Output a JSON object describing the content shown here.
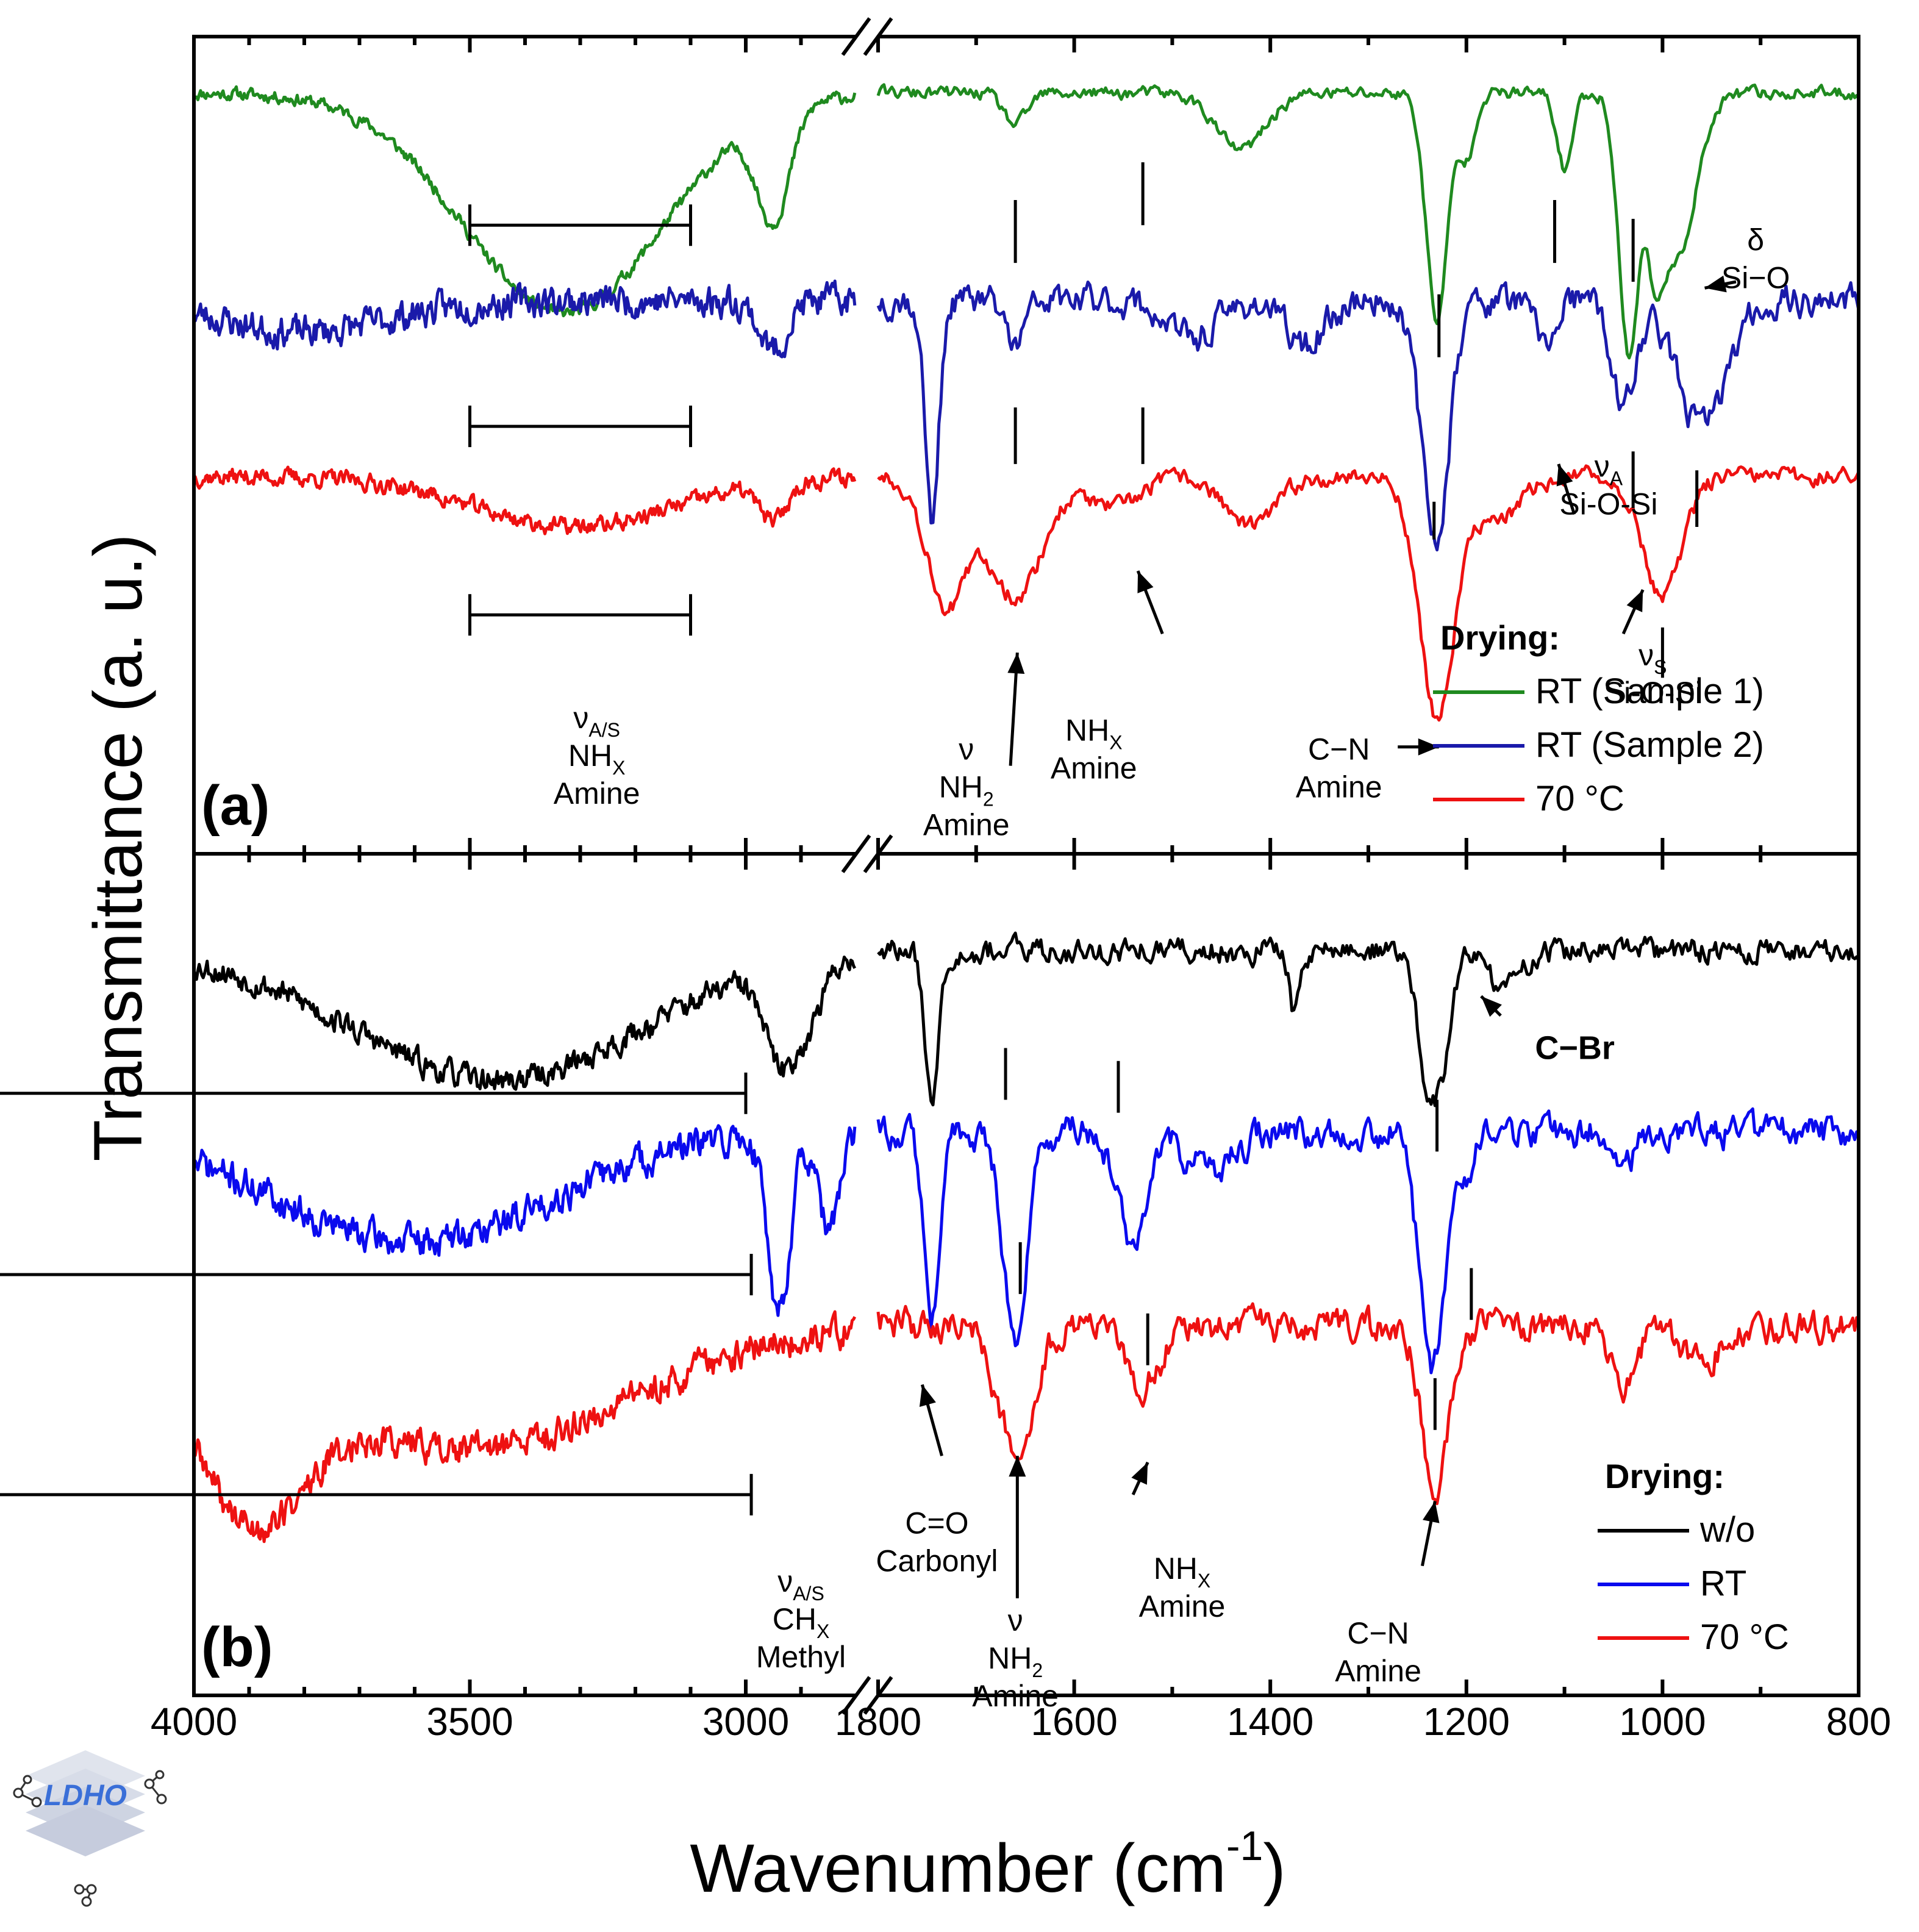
{
  "chart_data": {
    "type": "line",
    "ylabel": "Transmittance (a. u.)",
    "xlabel": "Wavenumber (cm",
    "xlabel_sup": "-1",
    "ylabel_units": "a. u.",
    "x_axis": {
      "reversed": true,
      "break": {
        "from": 2800,
        "to": 1800
      },
      "segment_left": [
        4000,
        2800
      ],
      "segment_right": [
        1800,
        800
      ],
      "tick_labels": [
        "4000",
        "3500",
        "3000",
        "1800",
        "1600",
        "1400",
        "1200",
        "1000",
        "800"
      ],
      "tick_values": [
        4000,
        3500,
        3000,
        1800,
        1600,
        1400,
        1200,
        1000,
        800
      ]
    },
    "panels": [
      {
        "label": "(a)",
        "legend_title": "Drying:",
        "series": [
          {
            "name": "RT (Sample 1)",
            "color": "#1f8a1f",
            "baseline": 0.91,
            "noise": 0.018,
            "seed": 11,
            "bands": [
              [
                3330,
                180,
                0.35
              ],
              [
                2950,
                30,
                0.17
              ],
              [
                1660,
                12,
                0.05
              ],
              [
                1430,
                25,
                0.09
              ],
              [
                1230,
                11,
                0.36
              ],
              [
                1200,
                8,
                0.1
              ],
              [
                1100,
                8,
                0.12
              ],
              [
                1035,
                10,
                0.38
              ],
              [
                990,
                22,
                0.28
              ],
              [
                1008,
                6,
                0.12
              ]
            ]
          },
          {
            "name": "RT (Sample 2)",
            "color": "#1a1aaa",
            "baseline": 0.58,
            "noise": 0.045,
            "seed": 23,
            "bands": [
              [
                3800,
                150,
                0.05
              ],
              [
                2950,
                25,
                0.08
              ],
              [
                1745,
                7,
                0.35
              ],
              [
                1660,
                10,
                0.07
              ],
              [
                1480,
                25,
                0.06
              ],
              [
                1365,
                20,
                0.07
              ],
              [
                1232,
                14,
                0.38
              ],
              [
                1120,
                10,
                0.07
              ],
              [
                1040,
                12,
                0.17
              ],
              [
                960,
                25,
                0.2
              ]
            ]
          },
          {
            "name": "70 °C",
            "color": "#ee1111",
            "baseline": 0.3,
            "noise": 0.025,
            "seed": 37,
            "bands": [
              [
                3310,
                180,
                0.08
              ],
              [
                2950,
                25,
                0.06
              ],
              [
                1730,
                20,
                0.2
              ],
              [
                1660,
                28,
                0.19
              ],
              [
                1560,
                25,
                0.05
              ],
              [
                1420,
                25,
                0.08
              ],
              [
                1230,
                18,
                0.38
              ],
              [
                1170,
                25,
                0.07
              ],
              [
                1000,
                20,
                0.19
              ]
            ]
          }
        ],
        "markers": [
          {
            "series": 0,
            "x": 1660,
            "y1": 0.74,
            "y2": 0.64
          },
          {
            "series": 0,
            "x": 1530,
            "y1": 0.8,
            "y2": 0.7
          },
          {
            "series": 0,
            "x": 1228,
            "y1": 0.59,
            "y2": 0.49
          },
          {
            "series": 0,
            "x": 1110,
            "y1": 0.74,
            "y2": 0.64
          },
          {
            "series": 0,
            "x": 1030,
            "y1": 0.71,
            "y2": 0.61
          },
          {
            "series": 1,
            "x": 1660,
            "y1": 0.41,
            "y2": 0.32
          },
          {
            "series": 1,
            "x": 1530,
            "y1": 0.41,
            "y2": 0.32
          },
          {
            "series": 1,
            "x": 1030,
            "y1": 0.34,
            "y2": 0.25
          },
          {
            "series": 1,
            "x": 965,
            "y1": 0.31,
            "y2": 0.22
          },
          {
            "series": 2,
            "x": 1233,
            "y1": 0.26,
            "y2": 0.2
          },
          {
            "series": 2,
            "x": 1000,
            "y1": 0.06,
            "y2": -0.02
          }
        ],
        "brackets": [
          {
            "x1": 3500,
            "x2": 3100,
            "y": 0.7
          },
          {
            "x1": 3500,
            "x2": 3100,
            "y": 0.38
          },
          {
            "x1": 3500,
            "x2": 3100,
            "y": 0.08
          }
        ],
        "annotations": [
          {
            "x": 3270,
            "y": -0.1,
            "lines": [
              [
                "ν",
                "A/S"
              ],
              [
                "NH",
                "X"
              ],
              [
                "Amine",
                ""
              ]
            ]
          },
          {
            "x": 1710,
            "y": -0.15,
            "lines": [
              [
                "ν",
                ""
              ],
              [
                "NH",
                "2"
              ],
              [
                "Amine",
                ""
              ]
            ]
          },
          {
            "x": 1580,
            "y": -0.12,
            "lines": [
              [
                "NH",
                "X"
              ],
              [
                "Amine",
                ""
              ]
            ]
          },
          {
            "x": 1330,
            "y": -0.15,
            "lines": [
              [
                "C−N",
                ""
              ],
              [
                "Amine",
                ""
              ]
            ]
          },
          {
            "x": 1055,
            "y": 0.3,
            "lines": [
              [
                "ν",
                "A"
              ],
              [
                "Si-O-Si",
                ""
              ]
            ]
          },
          {
            "x": 1010,
            "y": 0.0,
            "lines": [
              [
                "ν",
                "S"
              ],
              [
                "Si-O-Si",
                ""
              ]
            ]
          },
          {
            "x": 905,
            "y": 0.66,
            "lines": [
              [
                "δ",
                ""
              ],
              [
                "Si−O",
                ""
              ]
            ]
          }
        ],
        "arrows": [
          {
            "from": [
              1665,
              -0.16
            ],
            "to": [
              1658,
              0.02
            ]
          },
          {
            "from": [
              1510,
              0.05
            ],
            "to": [
              1535,
              0.15
            ]
          },
          {
            "from": [
              1270,
              -0.13
            ],
            "to": [
              1228,
              -0.13
            ]
          },
          {
            "from": [
              1090,
              0.24
            ],
            "to": [
              1106,
              0.32
            ]
          },
          {
            "from": [
              1040,
              0.05
            ],
            "to": [
              1020,
              0.12
            ]
          },
          {
            "from": [
              925,
              0.61
            ],
            "to": [
              957,
              0.6
            ]
          }
        ]
      },
      {
        "label": "(b)",
        "legend_title": "Drying:",
        "series": [
          {
            "name": "w/o",
            "color": "#000000",
            "baseline": 0.85,
            "noise": 0.035,
            "seed": 53,
            "bands": [
              [
                3450,
                260,
                0.2
              ],
              [
                2935,
                30,
                0.15
              ],
              [
                2880,
                25,
                0.07
              ],
              [
                1745,
                7,
                0.22
              ],
              [
                1375,
                5,
                0.1
              ],
              [
                1237,
                11,
                0.23
              ],
              [
                1220,
                8,
                0.09
              ],
              [
                1160,
                15,
                0.06
              ]
            ]
          },
          {
            "name": "RT",
            "color": "#0a0aee",
            "baseline": 0.57,
            "noise": 0.045,
            "seed": 71,
            "bands": [
              [
                3600,
                250,
                0.17
              ],
              [
                2940,
                20,
                0.27
              ],
              [
                2850,
                20,
                0.15
              ],
              [
                1745,
                8,
                0.29
              ],
              [
                1660,
                12,
                0.32
              ],
              [
                1540,
                15,
                0.17
              ],
              [
                1460,
                25,
                0.06
              ],
              [
                1235,
                13,
                0.36
              ],
              [
                1200,
                10,
                0.05
              ],
              [
                1040,
                12,
                0.05
              ]
            ]
          },
          {
            "name": "70 °C",
            "color": "#ee1111",
            "baseline": 0.27,
            "noise": 0.045,
            "seed": 89,
            "bands": [
              [
                3900,
                100,
                0.24
              ],
              [
                3500,
                280,
                0.19
              ],
              [
                1660,
                18,
                0.19
              ],
              [
                1530,
                18,
                0.09
              ],
              [
                1232,
                13,
                0.27
              ],
              [
                1040,
                12,
                0.09
              ],
              [
                960,
                20,
                0.05
              ]
            ]
          }
        ],
        "markers": [
          {
            "series": 0,
            "x": 1670,
            "y1": 0.7,
            "y2": 0.62
          },
          {
            "series": 0,
            "x": 1555,
            "y1": 0.68,
            "y2": 0.6
          },
          {
            "series": 1,
            "x": 1230,
            "y1": 0.62,
            "y2": 0.54
          },
          {
            "series": 1,
            "x": 1195,
            "y1": 0.36,
            "y2": 0.28
          },
          {
            "series": 1,
            "x": 1655,
            "y1": 0.4,
            "y2": 0.32
          },
          {
            "series": 1,
            "x": 1525,
            "y1": 0.29,
            "y2": 0.21
          },
          {
            "series": 2,
            "x": 1232,
            "y1": 0.19,
            "y2": 0.11
          }
        ],
        "brackets": [
          {
            "x1": 3000,
            "x2": 2780,
            "y": 0.63
          },
          {
            "x1": 2990,
            "x2": 2770,
            "y": 0.35
          },
          {
            "x1": 2990,
            "x2": 2770,
            "y": 0.01
          }
        ],
        "annotations": [
          {
            "x": 2900,
            "y": -0.14,
            "lines": [
              [
                "ν",
                "A/S"
              ],
              [
                "CH",
                "X"
              ],
              [
                "Methyl",
                ""
              ]
            ]
          },
          {
            "x": 1740,
            "y": -0.05,
            "lines": [
              [
                "C=O",
                ""
              ],
              [
                "Carbonyl",
                ""
              ]
            ]
          },
          {
            "x": 1660,
            "y": -0.2,
            "lines": [
              [
                "ν",
                ""
              ],
              [
                "NH",
                "2"
              ],
              [
                "Amine",
                ""
              ]
            ]
          },
          {
            "x": 1490,
            "y": -0.12,
            "lines": [
              [
                "NH",
                "X"
              ],
              [
                "Amine",
                ""
              ]
            ]
          },
          {
            "x": 1290,
            "y": -0.22,
            "lines": [
              [
                "C−N",
                ""
              ],
              [
                "Amine",
                ""
              ]
            ]
          }
        ],
        "arrows": [
          {
            "from": [
              1735,
              0.07
            ],
            "to": [
              1755,
              0.18
            ]
          },
          {
            "from": [
              1658,
              -0.15
            ],
            "to": [
              1658,
              0.07
            ]
          },
          {
            "from": [
              1540,
              0.01
            ],
            "to": [
              1525,
              0.06
            ]
          },
          {
            "from": [
              1245,
              -0.1
            ],
            "to": [
              1232,
              0.0
            ]
          },
          {
            "from": [
              1165,
              0.75
            ],
            "to": [
              1185,
              0.78
            ]
          }
        ],
        "extra_labels": [
          {
            "text": "C−Br",
            "x": 1130,
            "y": 0.7
          }
        ]
      }
    ]
  },
  "logo": {
    "text": "LDHO",
    "color": "#3a6fd8"
  }
}
